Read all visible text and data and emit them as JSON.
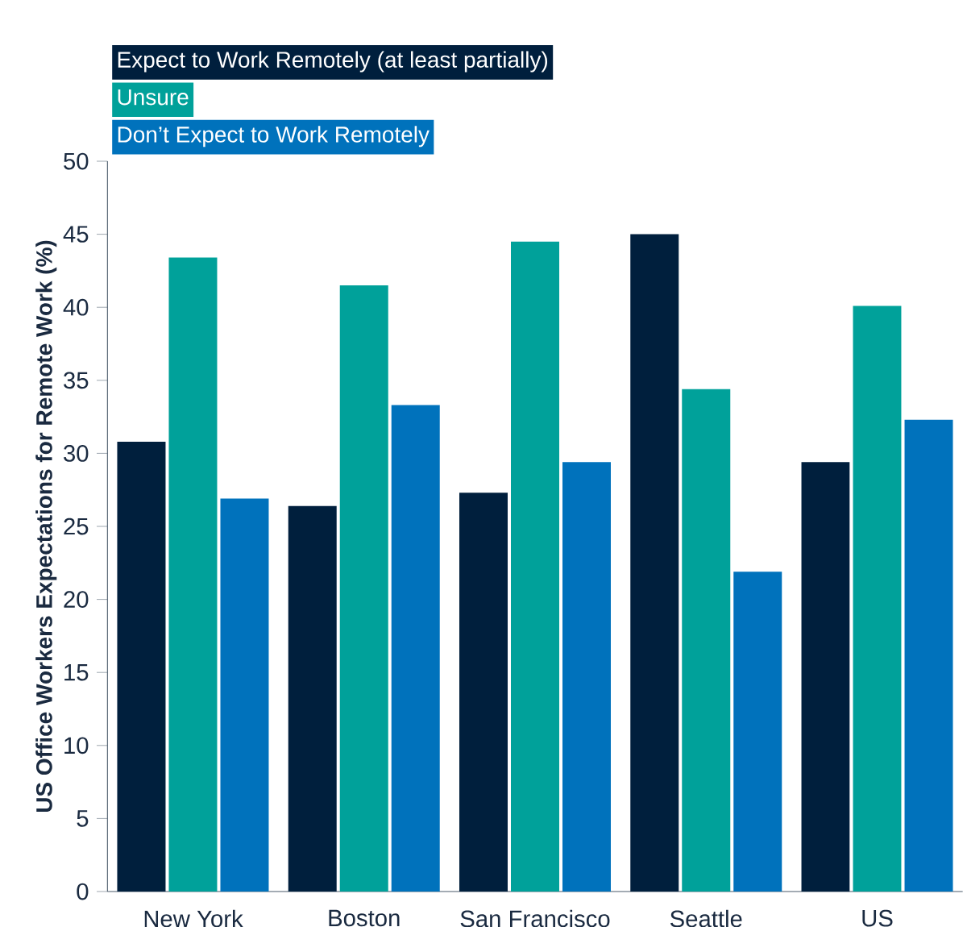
{
  "chart_data": {
    "type": "bar",
    "ylabel": "US Office Workers Expectations for Remote Work (%)",
    "categories": [
      "New York",
      "Boston",
      "San Francisco",
      "Seattle",
      "US"
    ],
    "series": [
      {
        "name": "Expect to Work Remotely (at least partially)",
        "color": "#001f3d",
        "values": [
          30.8,
          26.4,
          27.3,
          45.0,
          29.4
        ]
      },
      {
        "name": "Unsure",
        "color": "#00a19a",
        "values": [
          43.4,
          41.5,
          44.5,
          34.4,
          40.1
        ]
      },
      {
        "name": "Don’t Expect to Work Remotely",
        "color": "#0072bc",
        "values": [
          26.9,
          33.3,
          29.4,
          21.9,
          32.3
        ]
      }
    ],
    "ylim": [
      0,
      50
    ],
    "yticks": [
      0,
      5,
      10,
      15,
      20,
      25,
      30,
      35,
      40,
      45,
      50
    ],
    "grid": false,
    "legend": "top left"
  }
}
